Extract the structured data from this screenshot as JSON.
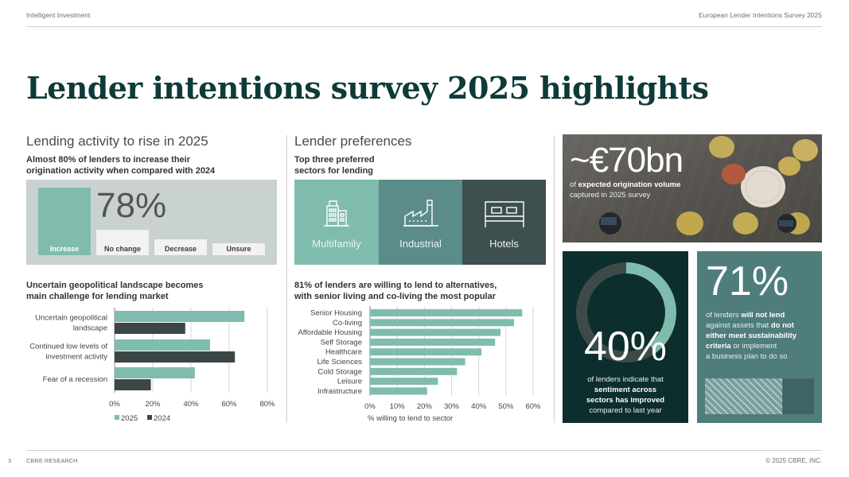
{
  "header": {
    "left": "Intelligent Investment",
    "right": "European Lender Intentions Survey 2025"
  },
  "page_title": "Lender intentions survey 2025 highlights",
  "lending": {
    "title": "Lending activity to rise in 2025",
    "subtitle_1": "Almost 80% of lenders to increase their",
    "subtitle_2": "origination activity when compared with 2024",
    "big_value": "78%",
    "bars": [
      {
        "label": "Increase",
        "value": 78
      },
      {
        "label": "No change",
        "value": 29
      },
      {
        "label": "Decrease",
        "value": 18
      },
      {
        "label": "Unsure",
        "value": 13
      }
    ]
  },
  "geo": {
    "title_1": "Uncertain geopolitical landscape becomes",
    "title_2": "main challenge for lending market",
    "legend_2025": "2025",
    "legend_2024": "2024"
  },
  "preferences": {
    "title": "Lender preferences",
    "subtitle_1": "Top three preferred",
    "subtitle_2": "sectors for lending",
    "sectors": [
      {
        "label": "Multifamily",
        "icon": "apartment-building-icon",
        "color": "#7fbcad"
      },
      {
        "label": "Industrial",
        "icon": "factory-icon",
        "color": "#5b8c8a"
      },
      {
        "label": "Hotels",
        "icon": "bed-icon",
        "color": "#3d4f4e"
      }
    ]
  },
  "alternatives": {
    "title_1": "81% of lenders are willing to lend to alternatives,",
    "title_2": "with senior living and co-living the most popular"
  },
  "origination": {
    "value": "~€70bn",
    "line1_prefix": "of ",
    "line1_bold": "expected origination volume",
    "line2": "captured in 2025 survey"
  },
  "sentiment": {
    "value": "40%",
    "percent": 40,
    "line1": "of lenders indicate that",
    "line2": "sentiment across",
    "line3": "sectors has improved",
    "line4": "compared to last year"
  },
  "sustainability": {
    "value": "71%",
    "percent": 71,
    "t1": "of lenders ",
    "t1b": "will not lend",
    "t2": "against assets that ",
    "t2b": "do not",
    "t3b": "either meet sustainability",
    "t4b": "criteria",
    "t4": " or implement",
    "t5": "a business plan to do so"
  },
  "footer": {
    "page_number": "3",
    "left": "CBRE RESEARCH",
    "right": "© 2025 CBRE, INC."
  },
  "colors": {
    "teal_light": "#7fbcad",
    "teal_mid": "#5b8c8a",
    "charcoal": "#3c4647",
    "dark_green": "#0c2e2c",
    "grey_panel": "#c9d1d1"
  },
  "chart_data": [
    {
      "type": "bar",
      "orientation": "horizontal",
      "title": "Uncertain geopolitical landscape becomes main challenge for lending market",
      "categories": [
        [
          "Uncertain geopolitical",
          "landscape"
        ],
        [
          "Continued low levels of",
          "investment activity"
        ],
        [
          "Fear of a recession"
        ]
      ],
      "series": [
        {
          "name": "2025",
          "color": "#7fbcad",
          "values": [
            68,
            50,
            42
          ]
        },
        {
          "name": "2024",
          "color": "#3c4647",
          "values": [
            37,
            63,
            19
          ]
        }
      ],
      "xlim": [
        0,
        80
      ],
      "xticks": [
        "0%",
        "20%",
        "40%",
        "60%",
        "80%"
      ],
      "tick_values": [
        0,
        20,
        40,
        60,
        80
      ],
      "legend": "bottom"
    },
    {
      "type": "bar",
      "orientation": "horizontal",
      "title": "81% of lenders are willing to lend to alternatives, with senior living and co-living the most popular",
      "categories": [
        "Senior Housing",
        "Co-living",
        "Affordable Housing",
        "Self Storage",
        "Healthcare",
        "Life Sciences",
        "Cold Storage",
        "Leisure",
        "Infrastructure"
      ],
      "values": [
        56,
        53,
        48,
        46,
        41,
        35,
        32,
        25,
        21
      ],
      "color": "#7fbcad",
      "xlim": [
        0,
        60
      ],
      "xticks": [
        "0%",
        "10%",
        "20%",
        "30%",
        "40%",
        "50%",
        "60%"
      ],
      "tick_values": [
        0,
        10,
        20,
        30,
        40,
        50,
        60
      ],
      "xlabel": "% willing to lend to sector"
    }
  ]
}
